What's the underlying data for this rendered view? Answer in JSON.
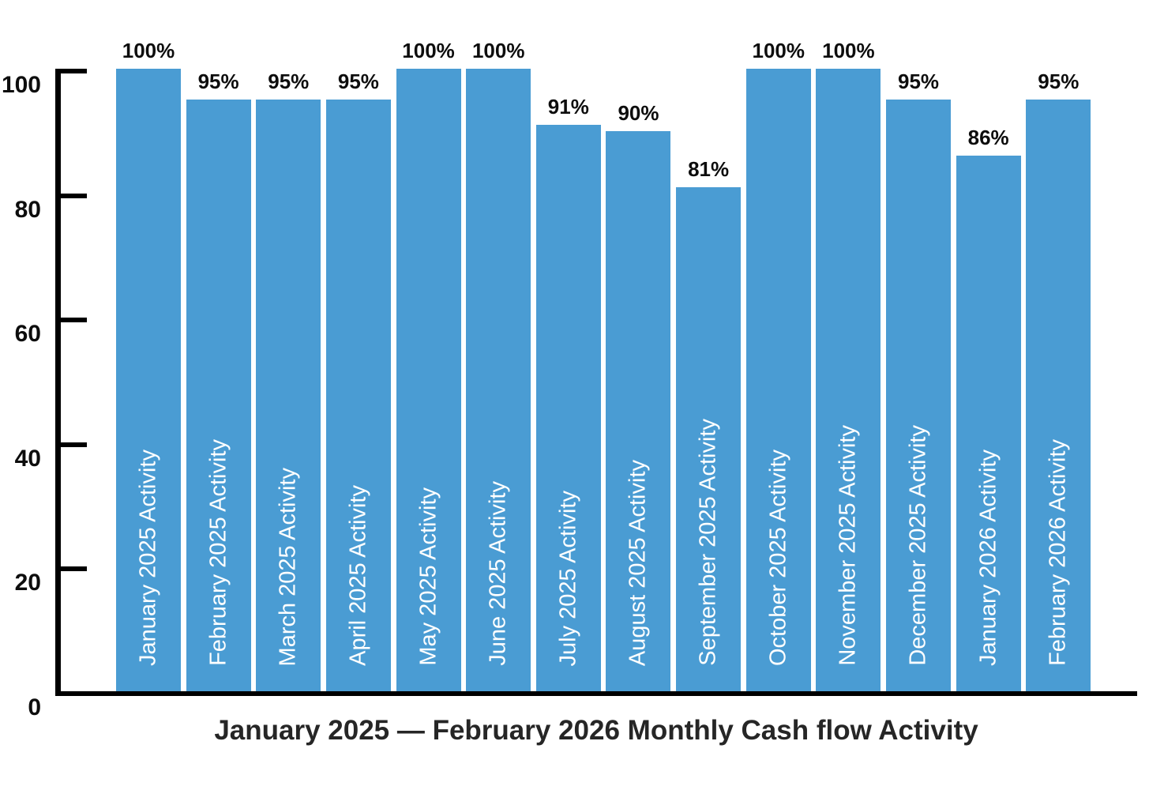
{
  "chart_data": {
    "type": "bar",
    "title": "January 2025 — February 2026 Monthly Cash flow Activity",
    "categories": [
      "January 2025 Activity",
      "February 2025 Activity",
      "March 2025 Activity",
      "April 2025 Activity",
      "May 2025 Activity",
      "June 2025 Activity",
      "July 2025 Activity",
      "August 2025 Activity",
      "September 2025 Activity",
      "October 2025 Activity",
      "November 2025 Activity",
      "December 2025 Activity",
      "January 2026 Activity",
      "February 2026 Activity"
    ],
    "values": [
      100,
      95,
      95,
      95,
      100,
      100,
      91,
      90,
      81,
      100,
      100,
      95,
      86,
      95
    ],
    "value_labels": [
      "100%",
      "95%",
      "95%",
      "95%",
      "100%",
      "100%",
      "91%",
      "90%",
      "81%",
      "100%",
      "100%",
      "95%",
      "86%",
      "95%"
    ],
    "y_ticks": [
      0,
      20,
      40,
      60,
      80,
      100
    ],
    "ylim": [
      0,
      100
    ],
    "xlabel": "",
    "ylabel": "",
    "grid": false,
    "legend_position": "none",
    "bar_color": "#4A9CD3",
    "bar_label_color": "#FFFFFF",
    "value_label_color": "#0D0D0D",
    "axis_color": "#000000",
    "title_color": "#262626"
  }
}
